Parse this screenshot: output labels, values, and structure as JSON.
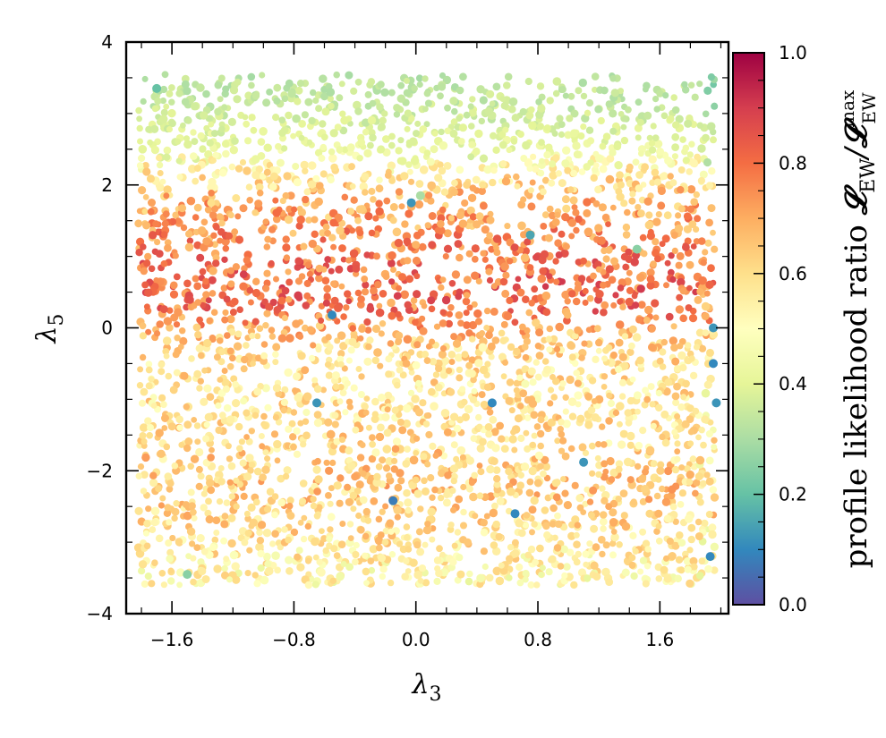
{
  "chart_data": {
    "type": "scatter",
    "title": "",
    "xlabel": "λ3",
    "ylabel": "λ5",
    "xlim": [
      -1.9,
      2.05
    ],
    "ylim": [
      -4,
      4
    ],
    "x_ticks": [
      -1.6,
      -0.8,
      0.0,
      0.8,
      1.6
    ],
    "x_tick_labels": [
      "−1.6",
      "−0.8",
      "0.0",
      "0.8",
      "1.6"
    ],
    "y_ticks": [
      -4,
      -2,
      0,
      2,
      4
    ],
    "y_tick_labels": [
      "−4",
      "−2",
      "0",
      "2",
      "4"
    ],
    "grid": false,
    "colormap": "Spectral_r",
    "colorbar": {
      "label_main": "profile likelihood ratio ",
      "label_L1": "𝓛",
      "label_sub1": "EW",
      "label_slash": "/",
      "label_L2": "𝓛",
      "label_sub2": "EW",
      "label_sup2": "max",
      "range": [
        0.0,
        1.0
      ],
      "ticks": [
        0.0,
        0.2,
        0.4,
        0.6,
        0.8,
        1.0
      ],
      "tick_labels": [
        "0.0",
        "0.2",
        "0.4",
        "0.6",
        "0.8",
        "1.0"
      ]
    },
    "density_profile_description": "likelihood ratio vs λ5 (uniform in λ3)",
    "band_profile": [
      {
        "y": 3.5,
        "value": 0.33
      },
      {
        "y": 3.0,
        "value": 0.36
      },
      {
        "y": 2.5,
        "value": 0.42
      },
      {
        "y": 2.2,
        "value": 0.55
      },
      {
        "y": 1.8,
        "value": 0.68
      },
      {
        "y": 1.2,
        "value": 0.76
      },
      {
        "y": 0.6,
        "value": 0.81
      },
      {
        "y": 0.2,
        "value": 0.78
      },
      {
        "y": -0.2,
        "value": 0.62
      },
      {
        "y": -0.8,
        "value": 0.58
      },
      {
        "y": -1.5,
        "value": 0.6
      },
      {
        "y": -2.2,
        "value": 0.64
      },
      {
        "y": -2.8,
        "value": 0.6
      },
      {
        "y": -3.5,
        "value": 0.52
      }
    ],
    "outliers": [
      {
        "x": -0.03,
        "y": 1.75,
        "value": 0.12
      },
      {
        "x": 0.03,
        "y": 1.85,
        "value": 0.3
      },
      {
        "x": 0.75,
        "y": 1.3,
        "value": 0.15
      },
      {
        "x": 1.45,
        "y": 1.1,
        "value": 0.25
      },
      {
        "x": -0.55,
        "y": 0.18,
        "value": 0.1
      },
      {
        "x": -0.65,
        "y": -1.05,
        "value": 0.12
      },
      {
        "x": 0.5,
        "y": -1.05,
        "value": 0.1
      },
      {
        "x": 1.1,
        "y": -1.88,
        "value": 0.12
      },
      {
        "x": -0.15,
        "y": -2.42,
        "value": 0.08
      },
      {
        "x": 0.65,
        "y": -2.6,
        "value": 0.1
      },
      {
        "x": -1.5,
        "y": -3.45,
        "value": 0.25
      },
      {
        "x": 1.95,
        "y": 0.0,
        "value": 0.12
      },
      {
        "x": 1.95,
        "y": -0.5,
        "value": 0.1
      },
      {
        "x": 1.97,
        "y": -1.05,
        "value": 0.12
      },
      {
        "x": 1.93,
        "y": -3.2,
        "value": 0.1
      },
      {
        "x": -1.7,
        "y": 3.35,
        "value": 0.2
      }
    ]
  }
}
